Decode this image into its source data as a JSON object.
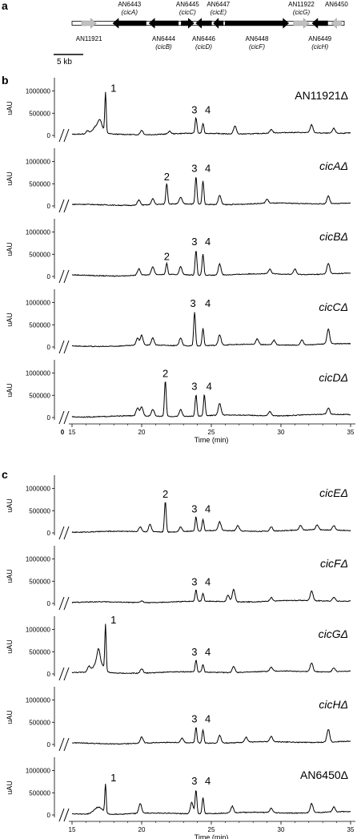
{
  "panels": [
    "a",
    "b",
    "c"
  ],
  "gene_cluster": {
    "scale_bar": "5 kb",
    "genes": [
      {
        "id": "AN11921",
        "name": "",
        "kind": "flank",
        "dir": "right",
        "start": 0.0,
        "end": 1.5
      },
      {
        "id": "AN6443",
        "name": "(cicA)",
        "kind": "cluster",
        "dir": "left",
        "start": 3.2,
        "end": 6.6
      },
      {
        "id": "AN6444",
        "name": "(cicB)",
        "kind": "cluster",
        "dir": "left",
        "start": 6.9,
        "end": 9.9
      },
      {
        "id": "AN6445",
        "name": "(cicC)",
        "kind": "cluster",
        "dir": "right",
        "start": 10.2,
        "end": 11.5
      },
      {
        "id": "AN6446",
        "name": "(cicD)",
        "kind": "cluster",
        "dir": "left",
        "start": 11.7,
        "end": 13.3
      },
      {
        "id": "AN6447",
        "name": "(cicE)",
        "kind": "cluster",
        "dir": "left",
        "start": 13.5,
        "end": 14.5
      },
      {
        "id": "AN6448",
        "name": "(cicF)",
        "kind": "cluster",
        "dir": "right",
        "start": 14.7,
        "end": 21.2
      },
      {
        "id": "AN11922",
        "name": "(cicG)",
        "kind": "flank",
        "dir": "right",
        "start": 21.7,
        "end": 23.3
      },
      {
        "id": "AN6449",
        "name": "(cicH)",
        "kind": "cluster",
        "dir": "left",
        "start": 23.6,
        "end": 25.2
      },
      {
        "id": "AN6450",
        "name": "",
        "kind": "flank",
        "dir": "left",
        "start": 25.6,
        "end": 26.6
      }
    ]
  },
  "chart_data": {
    "type": "line",
    "xlabel": "Time (min)",
    "ylabel": "uAU",
    "xlim": [
      14,
      35
    ],
    "ylim": [
      0,
      1300000
    ],
    "xticks": [
      15,
      20,
      25,
      30,
      35
    ],
    "yticks": [
      0,
      500000,
      1000000
    ],
    "axis_break": "//",
    "origin_label": "0",
    "series": [
      {
        "name": "AN11921Δ",
        "panel": "b",
        "peaks": [
          {
            "label": "1",
            "time": 17.4,
            "height": 880000
          },
          {
            "label": "3",
            "time": 23.9,
            "height": 350000
          },
          {
            "label": "4",
            "time": 24.4,
            "height": 220000
          }
        ],
        "minor": [
          [
            16.1,
            60000
          ],
          [
            17.0,
            120000
          ],
          [
            20.0,
            100000
          ],
          [
            22.0,
            60000
          ],
          [
            26.7,
            180000
          ],
          [
            29.3,
            80000
          ],
          [
            32.2,
            180000
          ],
          [
            33.8,
            110000
          ]
        ]
      },
      {
        "name": "cicAΔ",
        "panel": "b",
        "peaks": [
          {
            "label": "2",
            "time": 21.8,
            "height": 470000
          },
          {
            "label": "3",
            "time": 23.9,
            "height": 620000
          },
          {
            "label": "4",
            "time": 24.4,
            "height": 530000
          }
        ],
        "minor": [
          [
            19.8,
            120000
          ],
          [
            20.8,
            130000
          ],
          [
            22.8,
            150000
          ],
          [
            25.6,
            210000
          ],
          [
            29.0,
            90000
          ],
          [
            33.4,
            180000
          ]
        ]
      },
      {
        "name": "cicBΔ",
        "panel": "b",
        "peaks": [
          {
            "label": "2",
            "time": 21.8,
            "height": 260000
          },
          {
            "label": "3",
            "time": 23.9,
            "height": 560000
          },
          {
            "label": "4",
            "time": 24.4,
            "height": 480000
          }
        ],
        "minor": [
          [
            19.8,
            150000
          ],
          [
            20.8,
            180000
          ],
          [
            22.8,
            180000
          ],
          [
            25.6,
            250000
          ],
          [
            29.2,
            100000
          ],
          [
            31.0,
            120000
          ],
          [
            33.4,
            240000
          ]
        ]
      },
      {
        "name": "cicCΔ",
        "panel": "b",
        "peaks": [
          {
            "label": "3",
            "time": 23.8,
            "height": 760000
          },
          {
            "label": "4",
            "time": 24.4,
            "height": 400000
          }
        ],
        "minor": [
          [
            19.7,
            160000
          ],
          [
            20.0,
            220000
          ],
          [
            20.8,
            160000
          ],
          [
            22.8,
            180000
          ],
          [
            25.6,
            230000
          ],
          [
            28.3,
            130000
          ],
          [
            29.5,
            110000
          ],
          [
            31.5,
            120000
          ],
          [
            33.4,
            330000
          ]
        ]
      },
      {
        "name": "cicDΔ",
        "panel": "b",
        "peaks": [
          {
            "label": "2",
            "time": 21.7,
            "height": 800000
          },
          {
            "label": "3",
            "time": 23.9,
            "height": 480000
          },
          {
            "label": "4",
            "time": 24.5,
            "height": 480000
          }
        ],
        "minor": [
          [
            19.7,
            170000
          ],
          [
            20.0,
            200000
          ],
          [
            20.8,
            150000
          ],
          [
            22.8,
            160000
          ],
          [
            25.6,
            270000
          ],
          [
            29.2,
            100000
          ],
          [
            33.4,
            140000
          ]
        ]
      },
      {
        "name": "cicEΔ",
        "panel": "c",
        "peaks": [
          {
            "label": "2",
            "time": 21.7,
            "height": 690000
          },
          {
            "label": "3",
            "time": 23.9,
            "height": 320000
          },
          {
            "label": "4",
            "time": 24.4,
            "height": 260000
          }
        ],
        "minor": [
          [
            19.9,
            110000
          ],
          [
            20.6,
            170000
          ],
          [
            22.8,
            110000
          ],
          [
            25.6,
            200000
          ],
          [
            26.9,
            120000
          ],
          [
            29.3,
            100000
          ],
          [
            31.4,
            100000
          ],
          [
            32.6,
            110000
          ],
          [
            33.8,
            100000
          ]
        ]
      },
      {
        "name": "cicFΔ",
        "panel": "c",
        "peaks": [
          {
            "label": "3",
            "time": 23.9,
            "height": 260000
          },
          {
            "label": "4",
            "time": 24.4,
            "height": 180000
          }
        ],
        "minor": [
          [
            20.0,
            40000
          ],
          [
            26.2,
            140000
          ],
          [
            26.6,
            280000
          ],
          [
            29.3,
            80000
          ],
          [
            32.2,
            220000
          ],
          [
            33.8,
            90000
          ]
        ]
      },
      {
        "name": "cicGΔ",
        "panel": "c",
        "peaks": [
          {
            "label": "1",
            "time": 17.4,
            "height": 1030000
          },
          {
            "label": "3",
            "time": 23.9,
            "height": 270000
          },
          {
            "label": "4",
            "time": 24.4,
            "height": 170000
          }
        ],
        "minor": [
          [
            16.2,
            120000
          ],
          [
            16.9,
            280000
          ],
          [
            20.0,
            100000
          ],
          [
            26.6,
            140000
          ],
          [
            29.3,
            90000
          ],
          [
            32.2,
            200000
          ],
          [
            33.8,
            90000
          ]
        ]
      },
      {
        "name": "cicHΔ",
        "panel": "c",
        "peaks": [
          {
            "label": "3",
            "time": 23.9,
            "height": 350000
          },
          {
            "label": "4",
            "time": 24.4,
            "height": 300000
          }
        ],
        "minor": [
          [
            20.0,
            140000
          ],
          [
            22.9,
            100000
          ],
          [
            25.6,
            180000
          ],
          [
            27.5,
            110000
          ],
          [
            29.3,
            120000
          ],
          [
            33.4,
            290000
          ]
        ]
      },
      {
        "name": "AN6450Δ",
        "panel": "c",
        "peaks": [
          {
            "label": "1",
            "time": 17.4,
            "height": 650000
          },
          {
            "label": "3",
            "time": 23.9,
            "height": 540000
          },
          {
            "label": "4",
            "time": 24.4,
            "height": 370000
          }
        ],
        "minor": [
          [
            19.9,
            220000
          ],
          [
            23.6,
            260000
          ],
          [
            26.5,
            150000
          ],
          [
            29.3,
            100000
          ],
          [
            32.2,
            210000
          ],
          [
            33.8,
            110000
          ]
        ]
      }
    ]
  },
  "colors": {
    "trace": "#000000",
    "gene_cluster": "#000000",
    "gene_flank": "#c0c0c0",
    "chromosome": "#ffffff",
    "text": "#000000"
  }
}
